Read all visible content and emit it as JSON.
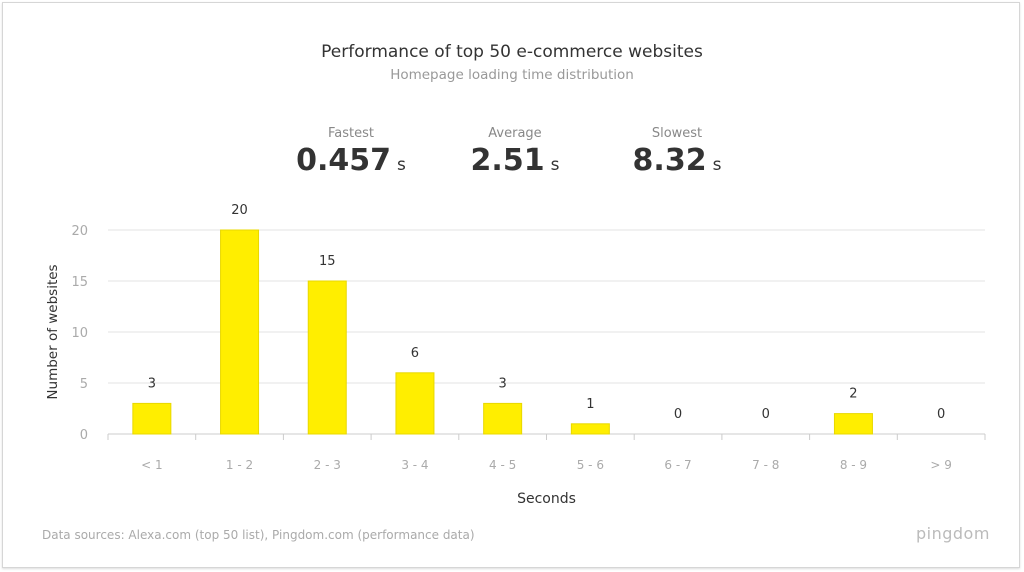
{
  "stats": [
    {
      "label": "Fastest",
      "value": "0.457",
      "unit": "s"
    },
    {
      "label": "Average",
      "value": "2.51",
      "unit": "s"
    },
    {
      "label": "Slowest",
      "value": "8.32",
      "unit": "s"
    }
  ],
  "footer": "Data sources: Alexa.com (top 50 list), Pingdom.com (performance data)",
  "logo": "pingdom",
  "chart_data": {
    "type": "bar",
    "title": "Performance of top 50 e-commerce websites",
    "subtitle": "Homepage loading time distribution",
    "xlabel": "Seconds",
    "ylabel": "Number of websites",
    "categories": [
      "< 1",
      "1 - 2",
      "2 - 3",
      "3 - 4",
      "4 - 5",
      "5 - 6",
      "6 - 7",
      "7 - 8",
      "8 - 9",
      "> 9"
    ],
    "values": [
      3,
      20,
      15,
      6,
      3,
      1,
      0,
      0,
      2,
      0
    ],
    "ylim": [
      0,
      20
    ],
    "yticks": [
      0,
      5,
      10,
      15,
      20
    ],
    "grid": true,
    "bar_color": "#ffee00"
  }
}
